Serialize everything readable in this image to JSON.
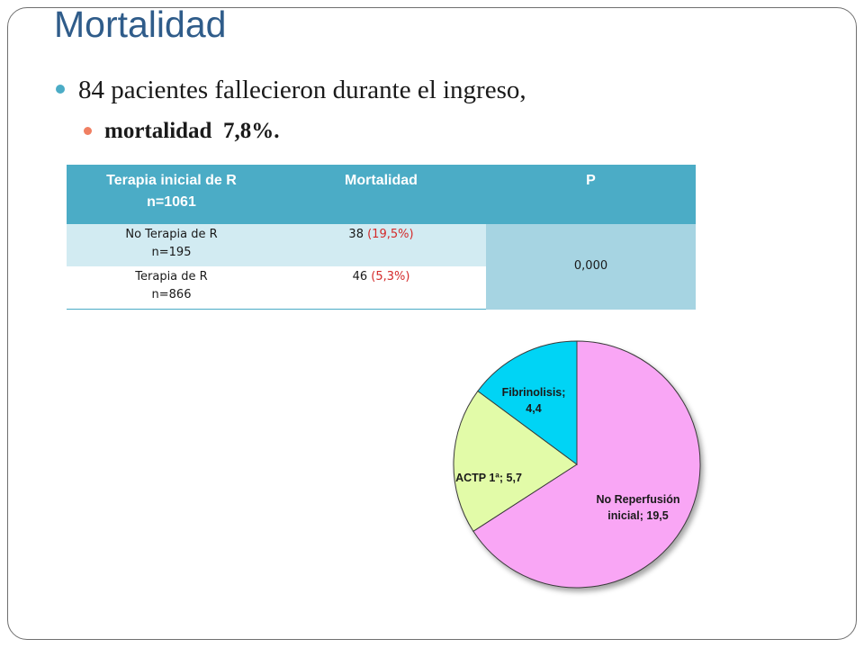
{
  "slide": {
    "title": "Mortalidad",
    "bullet1": "84 pacientes fallecieron durante el ingreso,",
    "bullet2": "mortalidad  7,8%."
  },
  "table": {
    "headers": {
      "col1_line1": "Terapia inicial de R",
      "col1_line2": "n=1061",
      "col2": "Mortalidad",
      "col3": "P"
    },
    "rows": [
      {
        "label_line1": "No Terapia de R",
        "label_line2": "n=195",
        "count": "38",
        "pct": "(19,5%)"
      },
      {
        "label_line1": "Terapia de R",
        "label_line2": "n=866",
        "count": "46",
        "pct": "(5,3%)"
      }
    ],
    "p_value": "0,000"
  },
  "chart_data": {
    "type": "pie",
    "slices": [
      {
        "label": "No Reperfusión inicial",
        "value": 19.5,
        "color": "#f9a6f5"
      },
      {
        "label": "ACTP 1ª",
        "value": 5.7,
        "color": "#e2fba8"
      },
      {
        "label": "Fibrinolisis",
        "value": 4.4,
        "color": "#00d4f5"
      }
    ],
    "data_labels": {
      "no_reperfusion_line1": "No Reperfusión",
      "no_reperfusion_line2": "inicial; 19,5",
      "actp": "ACTP 1ª; 5,7",
      "fibrinolisis_line1": "Fibrinolisis;",
      "fibrinolisis_line2": "4,4"
    }
  },
  "colors": {
    "title": "#2f5c8a",
    "table_header": "#4bacc6",
    "row_band": "#d2ebf2",
    "p_cell": "#a6d4e2",
    "percent_text": "#d42a2a",
    "bullet_primary": "#4bacc6",
    "bullet_secondary": "#f07f62"
  }
}
